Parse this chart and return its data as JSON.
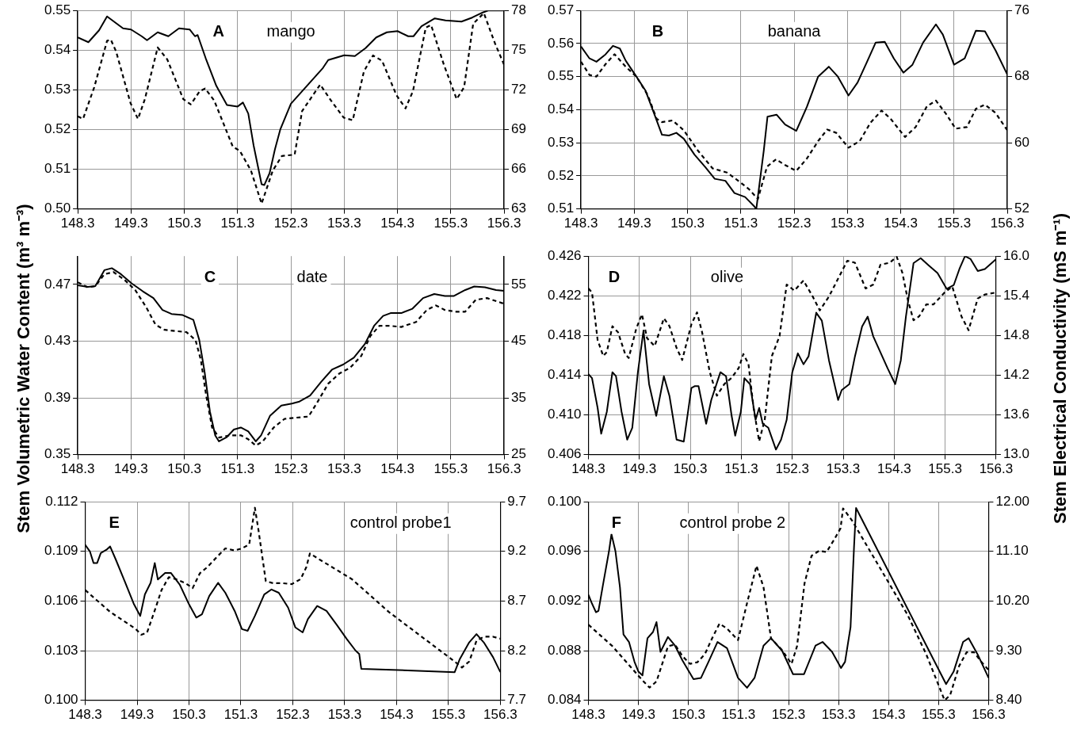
{
  "chart_data": [
    {
      "type": "line",
      "annotations": [
        "A",
        "mango"
      ],
      "xlim": [
        148.3,
        156.3
      ],
      "xticks": [
        148.3,
        149.3,
        150.3,
        151.3,
        152.3,
        153.3,
        154.3,
        155.3,
        156.3
      ],
      "ylim": [
        0.5,
        0.55
      ],
      "yticks": [
        {
          "value": 0.5,
          "label": "0.50"
        },
        0.51,
        0.52,
        0.53,
        0.54,
        0.55
      ],
      "y2lim": [
        63,
        78
      ],
      "y2ticks": [
        63,
        66,
        69,
        72,
        75,
        78
      ],
      "grid": true,
      "legend": false,
      "marker": "none",
      "series": [
        {
          "color": "#000000",
          "line_style": "solid",
          "x": [
            148.3,
            148.5,
            148.7,
            148.85,
            149.0,
            149.15,
            149.3,
            149.5,
            149.6,
            149.8,
            150.0,
            150.2,
            150.4,
            150.5,
            150.55,
            150.7,
            150.9,
            151.1,
            151.3,
            151.4,
            151.5,
            151.6,
            151.75,
            151.8,
            151.9,
            152.0,
            152.1,
            152.3,
            152.6,
            152.9,
            153.0,
            153.3,
            153.5,
            153.7,
            153.9,
            154.1,
            154.3,
            154.5,
            154.6,
            154.75,
            155.0,
            155.2,
            155.5,
            155.7,
            155.9,
            156.0,
            156.3
          ],
          "values": [
            0.5432,
            0.542,
            0.545,
            0.5485,
            0.547,
            0.5455,
            0.5452,
            0.5435,
            0.5425,
            0.5445,
            0.5435,
            0.5455,
            0.5452,
            0.5435,
            0.5438,
            0.538,
            0.531,
            0.5262,
            0.5258,
            0.5268,
            0.524,
            0.516,
            0.5062,
            0.506,
            0.509,
            0.515,
            0.52,
            0.5265,
            0.531,
            0.5355,
            0.5375,
            0.5387,
            0.5385,
            0.5405,
            0.5432,
            0.5445,
            0.5448,
            0.5435,
            0.5435,
            0.546,
            0.548,
            0.5475,
            0.5472,
            0.5482,
            0.5495,
            0.55,
            0.55
          ]
        },
        {
          "color": "#000000",
          "line_style": "dashed",
          "axis": "y2",
          "x": [
            148.3,
            148.4,
            148.61,
            148.85,
            148.92,
            149.02,
            149.29,
            149.43,
            149.56,
            149.8,
            149.98,
            150.28,
            150.42,
            150.59,
            150.69,
            150.86,
            151.21,
            151.34,
            151.55,
            151.75,
            151.96,
            152.13,
            152.37,
            152.51,
            152.85,
            153.05,
            153.29,
            153.46,
            153.67,
            153.84,
            154.01,
            154.28,
            154.45,
            154.59,
            154.83,
            154.93,
            155.17,
            155.41,
            155.55,
            155.72,
            155.92,
            156.13,
            156.3
          ],
          "values": [
            70.0,
            69.8,
            72.2,
            75.7,
            75.8,
            74.9,
            71.0,
            69.8,
            71.3,
            75.2,
            74.3,
            71.3,
            70.9,
            71.9,
            72.1,
            71.2,
            67.7,
            67.4,
            65.9,
            63.4,
            65.9,
            67.0,
            67.1,
            70.4,
            72.4,
            71.2,
            69.9,
            69.7,
            73.4,
            74.6,
            74.2,
            71.6,
            70.6,
            71.9,
            76.7,
            76.9,
            73.9,
            71.3,
            72.2,
            77.0,
            77.8,
            75.5,
            73.9
          ]
        }
      ]
    },
    {
      "type": "line",
      "annotations": [
        "B",
        "banana"
      ],
      "xlim": [
        148.3,
        156.3
      ],
      "xticks": [
        148.3,
        149.3,
        150.3,
        151.3,
        152.3,
        153.3,
        154.3,
        155.3,
        156.3
      ],
      "ylim": [
        0.51,
        0.57
      ],
      "yticks": [
        0.51,
        0.52,
        0.53,
        0.54,
        0.55,
        0.56,
        0.57
      ],
      "y2lim": [
        52,
        76
      ],
      "y2ticks": [
        52,
        60,
        68,
        76
      ],
      "grid": true,
      "legend": false,
      "marker": "none",
      "series": [
        {
          "color": "#000000",
          "line_style": "solid",
          "x": [
            148.3,
            148.46,
            148.59,
            148.76,
            148.9,
            149.03,
            149.14,
            149.34,
            149.51,
            149.68,
            149.82,
            149.95,
            150.09,
            150.23,
            150.43,
            150.63,
            150.81,
            151.01,
            151.18,
            151.38,
            151.55,
            151.59,
            151.73,
            151.8,
            151.97,
            152.13,
            152.34,
            152.54,
            152.75,
            152.95,
            153.12,
            153.32,
            153.49,
            153.66,
            153.83,
            154.0,
            154.17,
            154.35,
            154.52,
            154.72,
            154.96,
            155.09,
            155.3,
            155.5,
            155.71,
            155.88,
            156.08,
            156.3
          ],
          "values": [
            0.5591,
            0.5555,
            0.5545,
            0.5567,
            0.5593,
            0.5585,
            0.5548,
            0.55,
            0.5458,
            0.5385,
            0.5324,
            0.5322,
            0.533,
            0.5312,
            0.5264,
            0.5227,
            0.5191,
            0.5185,
            0.5148,
            0.5136,
            0.5108,
            0.51,
            0.5276,
            0.5379,
            0.5385,
            0.5355,
            0.5336,
            0.5409,
            0.55,
            0.553,
            0.55,
            0.5443,
            0.5482,
            0.5542,
            0.5603,
            0.5605,
            0.5555,
            0.5512,
            0.5536,
            0.5603,
            0.5658,
            0.5627,
            0.5536,
            0.5555,
            0.5639,
            0.5637,
            0.5579,
            0.5506
          ]
        },
        {
          "color": "#000000",
          "line_style": "dashed",
          "axis": "y2",
          "x": [
            148.3,
            148.46,
            148.59,
            148.76,
            148.93,
            149.14,
            149.34,
            149.55,
            149.72,
            149.82,
            150.02,
            150.23,
            150.5,
            150.77,
            151.04,
            151.25,
            151.45,
            151.62,
            151.79,
            151.96,
            152.13,
            152.34,
            152.54,
            152.75,
            152.92,
            153.09,
            153.32,
            153.53,
            153.73,
            153.94,
            154.11,
            154.38,
            154.58,
            154.79,
            154.96,
            155.16,
            155.33,
            155.54,
            155.71,
            155.88,
            156.08,
            156.3
          ],
          "values": [
            69.8,
            68.2,
            68.0,
            69.5,
            70.7,
            69.2,
            68.0,
            65.8,
            62.9,
            62.5,
            62.7,
            61.5,
            59.0,
            56.9,
            56.4,
            55.4,
            54.4,
            53.2,
            57.1,
            58.0,
            57.3,
            56.6,
            58.1,
            60.2,
            61.6,
            61.2,
            59.4,
            60.2,
            62.4,
            63.9,
            62.9,
            60.7,
            61.9,
            64.4,
            65.1,
            63.4,
            61.7,
            61.9,
            64.1,
            64.6,
            63.6,
            61.5
          ]
        }
      ]
    },
    {
      "type": "line",
      "annotations": [
        "C",
        "date"
      ],
      "ylabel": "Stem Volumetric Water Content (m³ m⁻³)",
      "xlim": [
        148.3,
        156.3
      ],
      "xticks": [
        148.3,
        149.3,
        150.3,
        151.3,
        152.3,
        153.3,
        154.3,
        155.3,
        156.3
      ],
      "ylim": [
        0.35,
        0.49
      ],
      "yticks": [
        0.35,
        0.39,
        0.43,
        0.47
      ],
      "y2lim": [
        25,
        60
      ],
      "y2ticks": [
        25,
        35,
        45,
        55
      ],
      "grid": true,
      "legend": false,
      "marker": "none",
      "series": [
        {
          "color": "#000000",
          "line_style": "solid",
          "x": [
            148.3,
            148.49,
            148.63,
            148.8,
            148.94,
            149.11,
            149.31,
            149.52,
            149.72,
            149.89,
            150.06,
            150.27,
            150.47,
            150.58,
            150.68,
            150.78,
            150.88,
            150.95,
            151.09,
            151.23,
            151.36,
            151.5,
            151.64,
            151.74,
            151.91,
            152.12,
            152.32,
            152.46,
            152.66,
            152.87,
            153.07,
            153.28,
            153.48,
            153.69,
            153.86,
            154.03,
            154.17,
            154.37,
            154.58,
            154.78,
            154.99,
            155.19,
            155.36,
            155.57,
            155.74,
            155.94,
            156.15,
            156.3
          ],
          "values": [
            0.4694,
            0.4683,
            0.4689,
            0.4801,
            0.4815,
            0.4773,
            0.4708,
            0.4652,
            0.4604,
            0.452,
            0.4492,
            0.4484,
            0.445,
            0.4309,
            0.4084,
            0.3804,
            0.3635,
            0.3593,
            0.3621,
            0.3677,
            0.3691,
            0.3663,
            0.3593,
            0.3635,
            0.3775,
            0.3846,
            0.386,
            0.3874,
            0.3916,
            0.4014,
            0.4099,
            0.4135,
            0.4183,
            0.4281,
            0.4408,
            0.4478,
            0.4498,
            0.4498,
            0.4529,
            0.4604,
            0.4633,
            0.4619,
            0.4619,
            0.4661,
            0.4686,
            0.468,
            0.4661,
            0.4655
          ]
        },
        {
          "color": "#000000",
          "line_style": "dashed",
          "axis": "y2",
          "x": [
            148.3,
            148.49,
            148.63,
            148.8,
            148.97,
            149.18,
            149.38,
            149.59,
            149.76,
            149.93,
            150.13,
            150.34,
            150.51,
            150.61,
            150.71,
            150.82,
            150.95,
            151.16,
            151.36,
            151.5,
            151.64,
            151.77,
            151.98,
            152.18,
            152.39,
            152.63,
            152.8,
            153.0,
            153.21,
            153.41,
            153.62,
            153.79,
            153.96,
            154.17,
            154.37,
            154.65,
            154.85,
            155.02,
            155.19,
            155.4,
            155.57,
            155.77,
            155.98,
            156.3
          ],
          "values": [
            55.4,
            54.5,
            54.7,
            56.8,
            57.2,
            55.8,
            54.0,
            50.9,
            47.9,
            47.0,
            46.8,
            46.6,
            45.2,
            41.7,
            35.4,
            29.8,
            28.0,
            28.4,
            28.4,
            27.7,
            26.6,
            27.3,
            29.8,
            31.3,
            31.5,
            31.7,
            34.3,
            37.5,
            39.3,
            40.3,
            42.4,
            45.9,
            47.7,
            47.7,
            47.5,
            48.4,
            50.5,
            51.3,
            50.5,
            50.2,
            50.2,
            52.3,
            52.6,
            51.6
          ]
        }
      ]
    },
    {
      "type": "line",
      "annotations": [
        "D",
        "olive"
      ],
      "y2label": "Stem Electrical Conductivity (mS m⁻¹)",
      "xlim": [
        148.3,
        156.3
      ],
      "xticks": [
        148.3,
        149.3,
        150.3,
        151.3,
        152.3,
        153.3,
        154.3,
        155.3,
        156.3
      ],
      "ylim": [
        0.406,
        0.426
      ],
      "yticks": [
        0.406,
        {
          "value": 0.41,
          "label": "0.410"
        },
        0.414,
        0.418,
        0.422,
        0.426
      ],
      "y2lim": [
        13,
        16
      ],
      "y2ticks": [
        {
          "value": 13,
          "label": "13.0"
        },
        13.6,
        14.2,
        14.8,
        15.4,
        {
          "value": 16,
          "label": "16.0"
        }
      ],
      "grid": true,
      "legend": false,
      "marker": "none",
      "series": [
        {
          "color": "#000000",
          "line_style": "solid",
          "x": [
            148.3,
            148.37,
            148.48,
            148.55,
            148.66,
            148.77,
            148.84,
            148.95,
            149.06,
            149.16,
            149.27,
            149.38,
            149.49,
            149.63,
            149.78,
            149.89,
            150.03,
            150.17,
            150.32,
            150.39,
            150.46,
            150.61,
            150.71,
            150.89,
            151.0,
            151.11,
            151.18,
            151.29,
            151.36,
            151.47,
            151.58,
            151.65,
            151.72,
            151.83,
            151.98,
            152.08,
            152.19,
            152.3,
            152.41,
            152.52,
            152.62,
            152.77,
            152.88,
            153.02,
            153.2,
            153.27,
            153.42,
            153.53,
            153.67,
            153.78,
            153.89,
            154.03,
            154.17,
            154.32,
            154.43,
            154.53,
            154.68,
            154.82,
            154.97,
            155.15,
            155.33,
            155.47,
            155.58,
            155.69,
            155.8,
            155.94,
            156.08,
            156.3
          ],
          "values": [
            0.4141,
            0.4137,
            0.4107,
            0.4081,
            0.4103,
            0.4143,
            0.4139,
            0.4103,
            0.4075,
            0.4087,
            0.4143,
            0.4185,
            0.4131,
            0.4099,
            0.4139,
            0.4119,
            0.4075,
            0.4073,
            0.4127,
            0.4129,
            0.4129,
            0.4091,
            0.4115,
            0.4143,
            0.4139,
            0.4099,
            0.4079,
            0.4103,
            0.4137,
            0.4131,
            0.4095,
            0.4107,
            0.4091,
            0.4087,
            0.4065,
            0.4075,
            0.4095,
            0.4143,
            0.4162,
            0.4151,
            0.4159,
            0.4203,
            0.4195,
            0.4155,
            0.4115,
            0.4125,
            0.4131,
            0.4159,
            0.4189,
            0.4199,
            0.4179,
            0.4163,
            0.4147,
            0.4131,
            0.4155,
            0.4199,
            0.4253,
            0.4258,
            0.4251,
            0.4243,
            0.4227,
            0.4231,
            0.4247,
            0.426,
            0.4257,
            0.4245,
            0.4247,
            0.4257
          ]
        },
        {
          "color": "#000000",
          "line_style": "dashed",
          "axis": "y2",
          "x": [
            148.3,
            148.37,
            148.48,
            148.59,
            148.66,
            148.77,
            148.88,
            149.02,
            149.09,
            149.24,
            149.35,
            149.45,
            149.6,
            149.78,
            149.89,
            150.03,
            150.14,
            150.32,
            150.43,
            150.53,
            150.68,
            150.82,
            150.97,
            151.11,
            151.25,
            151.34,
            151.44,
            151.54,
            151.65,
            151.76,
            151.9,
            152.05,
            152.19,
            152.34,
            152.52,
            152.7,
            152.84,
            153.02,
            153.2,
            153.38,
            153.53,
            153.74,
            153.89,
            154.03,
            154.21,
            154.35,
            154.46,
            154.57,
            154.68,
            154.79,
            154.93,
            155.07,
            155.29,
            155.44,
            155.62,
            155.76,
            155.94,
            156.08,
            156.3
          ],
          "values": [
            15.51,
            15.45,
            14.73,
            14.49,
            14.55,
            14.94,
            14.85,
            14.52,
            14.46,
            14.91,
            15.12,
            14.76,
            14.64,
            15.06,
            14.94,
            14.61,
            14.43,
            14.97,
            15.15,
            14.85,
            14.25,
            13.89,
            14.07,
            14.16,
            14.31,
            14.52,
            14.37,
            13.71,
            13.2,
            13.53,
            14.49,
            14.79,
            15.57,
            15.48,
            15.63,
            15.39,
            15.18,
            15.39,
            15.66,
            15.93,
            15.9,
            15.51,
            15.57,
            15.87,
            15.9,
            15.99,
            15.75,
            15.33,
            15.03,
            15.09,
            15.27,
            15.27,
            15.45,
            15.54,
            15.09,
            14.88,
            15.36,
            15.42,
            15.45
          ]
        }
      ]
    },
    {
      "type": "line",
      "annotations": [
        "E",
        "control probe1"
      ],
      "xlim": [
        148.3,
        156.3
      ],
      "xticks": [
        148.3,
        149.3,
        150.3,
        151.3,
        152.3,
        153.3,
        154.3,
        155.3,
        156.3
      ],
      "ylim": [
        0.1,
        0.112
      ],
      "yticks": [
        {
          "value": 0.1,
          "label": "0.100"
        },
        0.103,
        0.106,
        0.109,
        0.112
      ],
      "y2lim": [
        7.7,
        9.7
      ],
      "y2ticks": [
        7.7,
        8.2,
        8.7,
        9.2,
        9.7
      ],
      "grid": true,
      "legend": false,
      "marker": "none",
      "series": [
        {
          "color": "#000000",
          "line_style": "solid",
          "x": [
            148.3,
            148.39,
            148.46,
            148.53,
            148.6,
            148.71,
            148.78,
            148.89,
            149.06,
            149.24,
            149.36,
            149.45,
            149.56,
            149.64,
            149.7,
            149.84,
            149.95,
            150.12,
            150.3,
            150.44,
            150.55,
            150.69,
            150.86,
            151.0,
            151.18,
            151.32,
            151.43,
            151.57,
            151.75,
            151.89,
            152.03,
            152.21,
            152.35,
            152.49,
            152.59,
            152.77,
            152.95,
            153.16,
            153.34,
            153.51,
            153.58,
            153.62,
            155.42,
            155.52,
            155.7,
            155.84,
            155.98,
            156.16,
            156.3
          ],
          "values": [
            0.1094,
            0.109,
            0.1083,
            0.1083,
            0.1089,
            0.1091,
            0.1093,
            0.1085,
            0.1072,
            0.1058,
            0.1051,
            0.1064,
            0.1071,
            0.1083,
            0.1073,
            0.1077,
            0.1077,
            0.107,
            0.1058,
            0.105,
            0.1052,
            0.1063,
            0.1071,
            0.1065,
            0.1054,
            0.1043,
            0.1042,
            0.1051,
            0.1064,
            0.1067,
            0.1065,
            0.1056,
            0.1044,
            0.1041,
            0.1049,
            0.1057,
            0.1054,
            0.1045,
            0.1037,
            0.103,
            0.1028,
            0.1019,
            0.1017,
            0.1025,
            0.1035,
            0.104,
            0.1035,
            0.1026,
            0.1017
          ]
        },
        {
          "color": "#000000",
          "line_style": "dashed",
          "axis": "y2",
          "x": [
            148.3,
            148.78,
            149.27,
            149.38,
            149.49,
            149.63,
            149.77,
            149.91,
            150.05,
            150.23,
            150.37,
            150.51,
            150.65,
            150.83,
            151.0,
            151.18,
            151.32,
            151.46,
            151.57,
            151.64,
            151.78,
            151.92,
            152.1,
            152.28,
            152.45,
            152.56,
            152.63,
            152.81,
            153.44,
            154.15,
            155.14,
            155.42,
            155.56,
            155.7,
            155.84,
            155.98,
            156.16,
            156.3
          ],
          "values": [
            8.81,
            8.59,
            8.42,
            8.36,
            8.38,
            8.59,
            8.81,
            8.94,
            8.92,
            8.88,
            8.83,
            8.98,
            9.04,
            9.14,
            9.23,
            9.21,
            9.23,
            9.27,
            9.64,
            9.41,
            8.9,
            8.88,
            8.88,
            8.87,
            8.92,
            9.04,
            9.18,
            9.12,
            8.92,
            8.59,
            8.2,
            8.09,
            8.03,
            8.09,
            8.3,
            8.34,
            8.34,
            8.32
          ]
        }
      ]
    },
    {
      "type": "line",
      "annotations": [
        "F",
        "control probe 2"
      ],
      "xlim": [
        148.3,
        156.3
      ],
      "xticks": [
        148.3,
        149.3,
        150.3,
        151.3,
        152.3,
        153.3,
        154.3,
        155.3,
        156.3
      ],
      "ylim": [
        0.084,
        0.1
      ],
      "yticks": [
        0.084,
        0.088,
        0.092,
        0.096,
        {
          "value": 0.1,
          "label": "0.100"
        }
      ],
      "y2lim": [
        8.4,
        12
      ],
      "y2ticks": [
        {
          "value": 8.4,
          "label": "8.40"
        },
        {
          "value": 9.3,
          "label": "9.30"
        },
        {
          "value": 10.2,
          "label": "10.20"
        },
        {
          "value": 11.1,
          "label": "11.10"
        },
        {
          "value": 12,
          "label": "12.00"
        }
      ],
      "grid": true,
      "legend": false,
      "marker": "none",
      "series": [
        {
          "color": "#000000",
          "line_style": "solid",
          "x": [
            148.3,
            148.37,
            148.45,
            148.5,
            148.59,
            148.71,
            148.76,
            148.84,
            148.93,
            149.0,
            149.11,
            149.22,
            149.3,
            149.38,
            149.48,
            149.59,
            149.66,
            149.74,
            149.89,
            150.03,
            150.18,
            150.4,
            150.55,
            150.7,
            150.88,
            151.07,
            151.29,
            151.47,
            151.62,
            151.8,
            151.95,
            152.17,
            152.39,
            152.61,
            152.84,
            152.98,
            153.17,
            153.35,
            153.43,
            153.54,
            153.61,
            153.65,
            155.45,
            155.6,
            155.79,
            155.9,
            156.08,
            156.3
          ],
          "values": [
            0.0925,
            0.0918,
            0.0911,
            0.0912,
            0.0933,
            0.096,
            0.0974,
            0.096,
            0.0931,
            0.0893,
            0.0887,
            0.0871,
            0.0863,
            0.086,
            0.089,
            0.0895,
            0.0903,
            0.0879,
            0.0891,
            0.0884,
            0.0872,
            0.0857,
            0.0858,
            0.0871,
            0.0887,
            0.0882,
            0.0858,
            0.085,
            0.0858,
            0.0884,
            0.089,
            0.088,
            0.0861,
            0.0861,
            0.0884,
            0.0887,
            0.0879,
            0.0866,
            0.0871,
            0.0899,
            0.0964,
            0.0995,
            0.0853,
            0.0863,
            0.0887,
            0.089,
            0.0877,
            0.0858
          ]
        },
        {
          "color": "#000000",
          "line_style": "dashed",
          "axis": "y2",
          "x": [
            148.3,
            148.78,
            149.37,
            149.52,
            149.66,
            149.89,
            150.03,
            150.18,
            150.33,
            150.48,
            150.63,
            150.77,
            150.92,
            151.07,
            151.29,
            151.47,
            151.66,
            151.8,
            151.95,
            152.17,
            152.36,
            152.47,
            152.62,
            152.76,
            152.91,
            153.06,
            153.21,
            153.34,
            153.39,
            153.57,
            153.94,
            154.31,
            154.68,
            155.05,
            155.42,
            155.53,
            155.71,
            155.86,
            156.01,
            156.16,
            156.3
          ],
          "values": [
            9.77,
            9.38,
            8.77,
            8.63,
            8.74,
            9.38,
            9.41,
            9.2,
            9.06,
            9.09,
            9.24,
            9.52,
            9.79,
            9.7,
            9.49,
            10.16,
            10.84,
            10.45,
            9.52,
            9.31,
            9.06,
            9.38,
            10.52,
            11.02,
            11.11,
            11.09,
            11.31,
            11.52,
            11.88,
            11.66,
            11.09,
            10.52,
            9.95,
            9.24,
            8.4,
            8.49,
            9.02,
            9.27,
            9.27,
            9.09,
            8.95
          ]
        }
      ]
    }
  ]
}
